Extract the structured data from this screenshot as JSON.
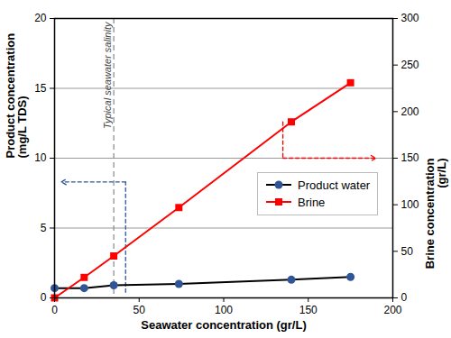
{
  "chart_data": {
    "type": "line",
    "x_label": "Seawater concentration (gr/L)",
    "y_label": "Product concentration\n(mg/L TDS)",
    "y2_label": "Brine concentration\n(gr/L)",
    "xlim": [
      0,
      200
    ],
    "xticks": [
      0,
      50,
      100,
      150,
      200
    ],
    "ylim": [
      0,
      20
    ],
    "yticks": [
      0,
      5,
      10,
      15,
      20
    ],
    "y2lim": [
      0,
      300
    ],
    "y2ticks": [
      0,
      50,
      100,
      150,
      200,
      250,
      300
    ],
    "grid": true,
    "legend": "right",
    "annotations": [
      {
        "text": "Typical seawater salinity",
        "x": 35,
        "line_style": "dashed"
      }
    ],
    "x": [
      0,
      17.5,
      35,
      73.5,
      140,
      175
    ],
    "series": [
      {
        "name": "Product water",
        "color": "#2f5597",
        "marker": "circle",
        "values": [
          0.7,
          0.7,
          0.9,
          1.0,
          1.3,
          1.5
        ]
      },
      {
        "name": "Brine",
        "color": "#ff0000",
        "marker": "square",
        "axis": "y2",
        "values": [
          0,
          22,
          45,
          97,
          189,
          231
        ]
      }
    ]
  }
}
